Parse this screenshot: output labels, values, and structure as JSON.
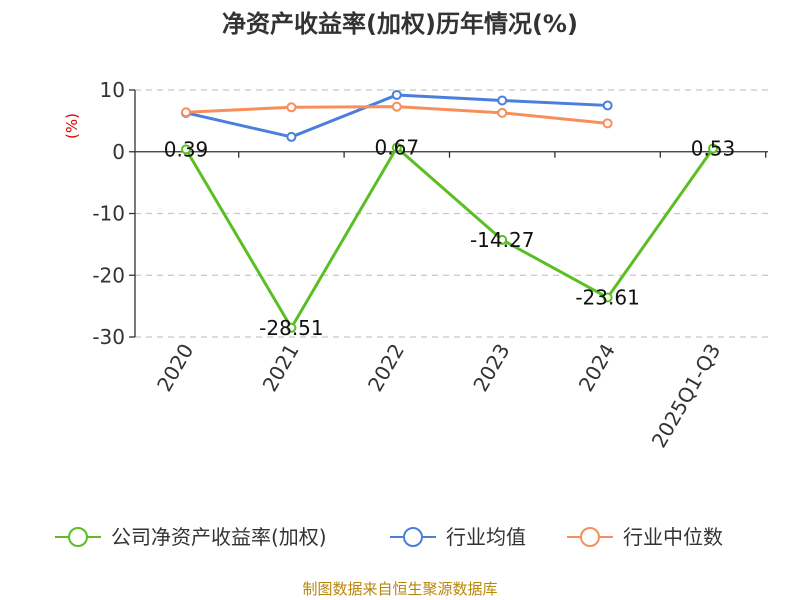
{
  "chart_data": {
    "type": "line",
    "title": "净资产收益率(加权)历年情况(%)",
    "y_unit": "(%)",
    "categories": [
      "2020",
      "2021",
      "2022",
      "2023",
      "2024",
      "2025Q1-Q3"
    ],
    "ylim": [
      -30,
      10
    ],
    "yticks": [
      10,
      0,
      -10,
      -20,
      -30
    ],
    "grid": true,
    "legend_position": "bottom",
    "series": [
      {
        "name": "公司净资产收益率(加权)",
        "color": "#5bbf24",
        "values": [
          0.39,
          -28.51,
          0.67,
          -14.27,
          -23.61,
          0.53
        ],
        "labels": [
          "0.39",
          "-28.51",
          "0.67",
          "-14.27",
          "-23.61",
          "0.53"
        ]
      },
      {
        "name": "行业均值",
        "color": "#4a7fdc",
        "values": [
          6.3,
          2.4,
          9.2,
          8.3,
          7.5,
          null
        ]
      },
      {
        "name": "行业中位数",
        "color": "#f78e5b",
        "values": [
          6.4,
          7.2,
          7.3,
          6.3,
          4.6,
          null
        ]
      }
    ]
  },
  "footer": {
    "source": "制图数据来自恒生聚源数据库"
  }
}
